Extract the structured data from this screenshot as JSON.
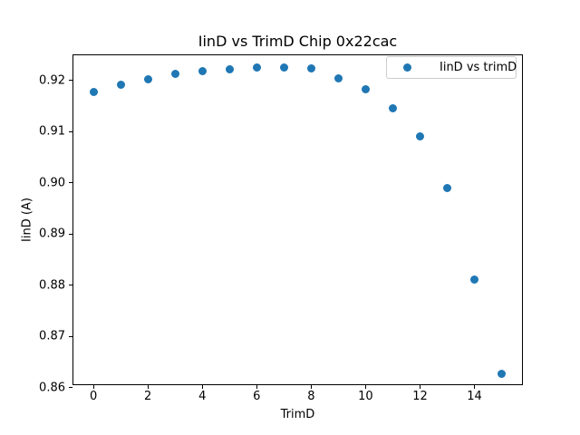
{
  "figure": {
    "background": "#ffffff",
    "spine_color": "#000000"
  },
  "chart_data": {
    "type": "scatter",
    "title": "IinD vs TrimD Chip 0x22cac",
    "xlabel": "TrimD",
    "ylabel": "IinD (A)",
    "legend": [
      "IinD vs trimD"
    ],
    "legend_position": "upper right",
    "marker_color": "#1f77b4",
    "grid": false,
    "x": [
      0,
      1,
      2,
      3,
      4,
      5,
      6,
      7,
      8,
      9,
      10,
      11,
      12,
      13,
      14,
      15
    ],
    "y": [
      0.9177,
      0.9191,
      0.9203,
      0.9213,
      0.9219,
      0.9222,
      0.9225,
      0.9226,
      0.9223,
      0.9204,
      0.9182,
      0.9146,
      0.909,
      0.899,
      0.8812,
      0.8628
    ],
    "xlim": [
      -0.77,
      15.78
    ],
    "ylim": [
      0.8605,
      0.9251
    ],
    "xticks": [
      0,
      2,
      4,
      6,
      8,
      10,
      12,
      14
    ],
    "yticks": [
      0.86,
      0.87,
      0.88,
      0.89,
      0.9,
      0.91,
      0.92
    ],
    "ytick_decimals": 2
  }
}
